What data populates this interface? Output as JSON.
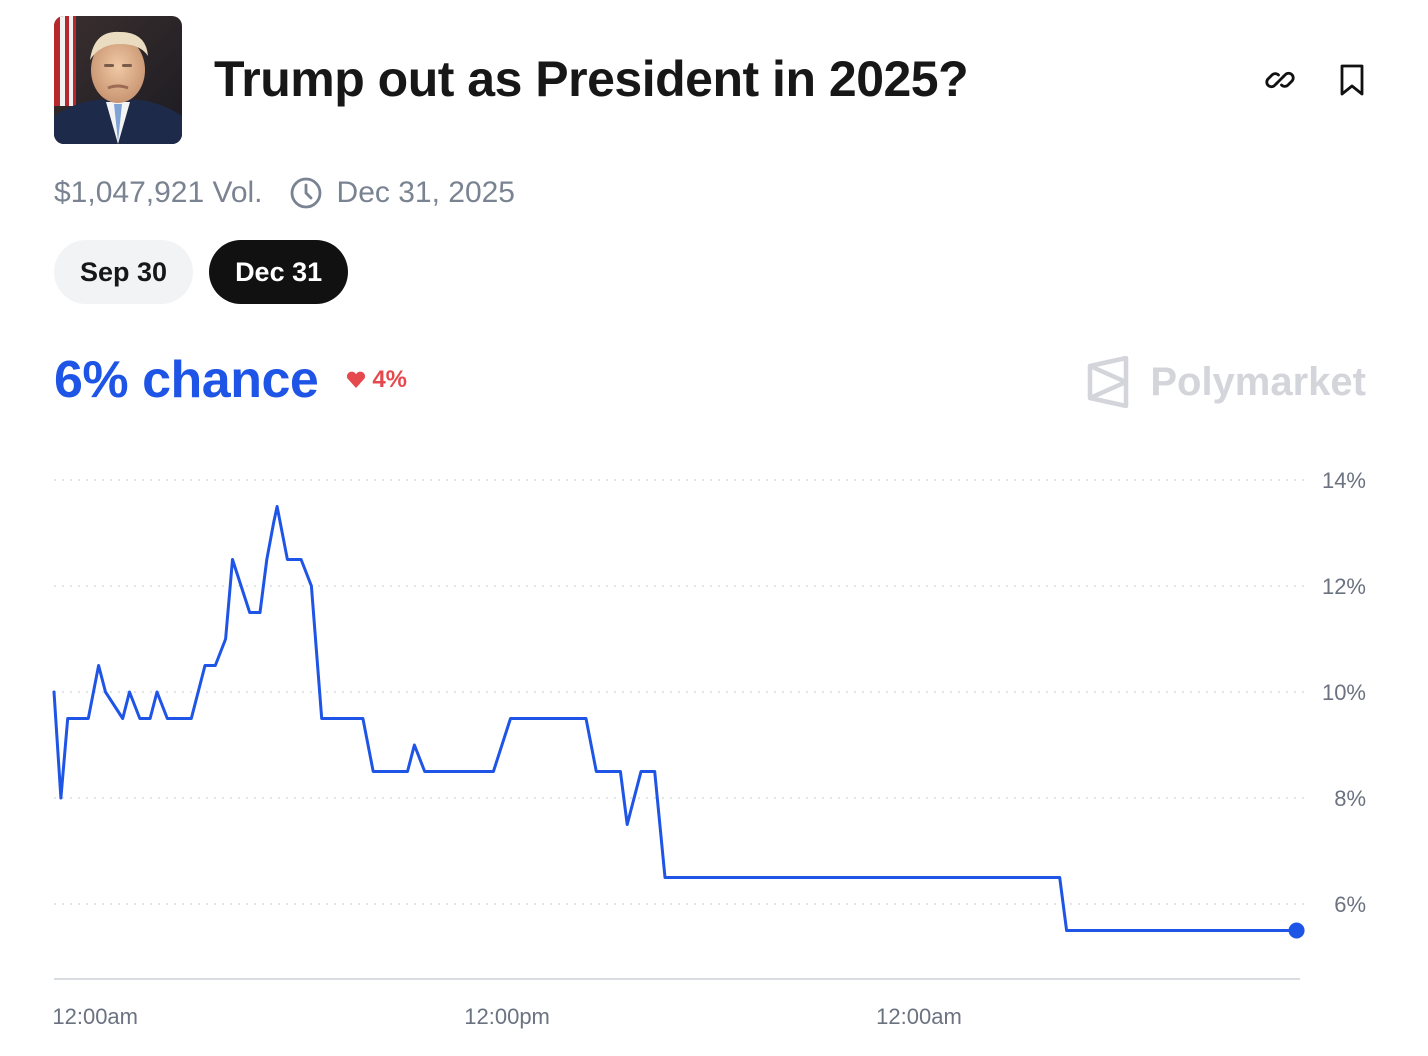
{
  "header": {
    "title": "Trump out as President in 2025?",
    "avatar_icon": "portrait-avatar",
    "link_icon": "link-icon",
    "bookmark_icon": "bookmark-icon"
  },
  "meta": {
    "volume": "$1,047,921 Vol.",
    "end_date": "Dec 31, 2025",
    "clock_icon": "clock-icon"
  },
  "tabs": [
    {
      "label": "Sep 30",
      "active": false
    },
    {
      "label": "Dec 31",
      "active": true
    }
  ],
  "summary": {
    "chance": "6% chance",
    "change": "4%",
    "change_direction": "down",
    "brand": "Polymarket"
  },
  "colors": {
    "line": "#1f55e6",
    "down": "#e5484d",
    "brand_gray": "#d3d5da",
    "grid": "#d9dce1"
  },
  "chart_data": {
    "type": "line",
    "title": "",
    "xlabel": "",
    "ylabel": "",
    "ylim": [
      4.5,
      14
    ],
    "yticks": [
      14,
      12,
      10,
      8,
      6
    ],
    "ytick_labels": [
      "14%",
      "12%",
      "10%",
      "8%",
      "6%"
    ],
    "xtick_labels": [
      "12:00am",
      "12:00pm",
      "12:00am"
    ],
    "xtick_hours": [
      1.2,
      13.2,
      25.2
    ],
    "x_range_hours": [
      0,
      36.3
    ],
    "grid": "horizontal-dotted",
    "series": [
      {
        "x_hours": [
          0,
          0.2,
          0.4,
          0.5,
          1.0,
          1.3,
          1.5,
          2.0,
          2.2,
          2.5,
          2.8,
          3.0,
          3.3,
          3.6,
          4.0,
          4.4,
          4.7,
          5.0,
          5.2,
          5.7,
          6.0,
          6.2,
          6.4,
          6.5,
          6.8,
          6.9,
          7.2,
          7.5,
          7.8,
          8.2,
          9.0,
          9.3,
          9.6,
          10.3,
          10.5,
          10.8,
          11.5,
          12.8,
          13.3,
          14.4,
          15.5,
          15.8,
          16.1,
          16.5,
          16.7,
          17.1,
          17.3,
          17.5,
          17.8,
          29.3,
          29.5,
          36.2
        ],
        "y": [
          10.0,
          8.0,
          9.5,
          9.5,
          9.5,
          10.5,
          10.0,
          9.5,
          10.0,
          9.5,
          9.5,
          10.0,
          9.5,
          9.5,
          9.5,
          10.5,
          10.5,
          11.0,
          12.5,
          11.5,
          11.5,
          12.5,
          13.2,
          13.5,
          12.5,
          12.5,
          12.5,
          12.0,
          9.5,
          9.5,
          9.5,
          8.5,
          8.5,
          8.5,
          9.0,
          8.5,
          8.5,
          8.5,
          9.5,
          9.5,
          9.5,
          8.5,
          8.5,
          8.5,
          7.5,
          8.5,
          8.5,
          8.5,
          6.5,
          6.5,
          5.5,
          5.5
        ]
      }
    ]
  }
}
